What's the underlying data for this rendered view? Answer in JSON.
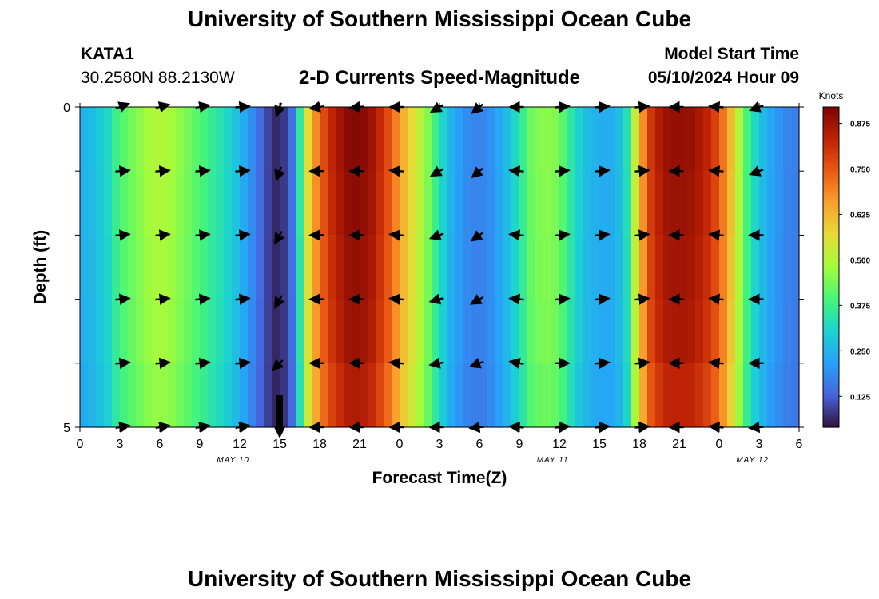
{
  "header": {
    "title": "University of Southern Mississippi Ocean Cube",
    "station_id": "KATA1",
    "coordinates": "30.2580N  88.2130W",
    "subtitle": "2-D Currents Speed-Magnitude",
    "model_start_label": "Model Start Time",
    "model_start_value": "05/10/2024 Hour 09"
  },
  "footer": {
    "title": "University of Southern Mississippi Ocean Cube"
  },
  "colors": {
    "low": "#30123b",
    "mid": "#a3fd3d",
    "high": "#7a0403"
  },
  "chart_data": {
    "type": "heatmap",
    "title": "2-D Currents Speed-Magnitude",
    "xlabel": "Forecast Time(Z)",
    "ylabel": "Depth (ft)",
    "x_hours": [
      0,
      54
    ],
    "x_ticks": [
      "0",
      "3",
      "6",
      "9",
      "12",
      "15",
      "18",
      "21",
      "0",
      "3",
      "6",
      "9",
      "12",
      "15",
      "18",
      "21",
      "0",
      "3",
      "6"
    ],
    "date_labels": [
      {
        "text": "MAY 10",
        "hour": 11.5
      },
      {
        "text": "MAY 11",
        "hour": 35.5
      },
      {
        "text": "MAY 12",
        "hour": 50.5
      }
    ],
    "y_ticks": [
      "0",
      "5"
    ],
    "ylim": [
      0,
      5
    ],
    "colorbar": {
      "label": "Knots",
      "range": [
        0.04,
        0.92
      ],
      "ticks": [
        "0.875",
        "0.750",
        "0.625",
        "0.500",
        "0.375",
        "0.250",
        "0.125"
      ]
    },
    "speed_profile": [
      [
        0,
        0.24
      ],
      [
        1,
        0.27
      ],
      [
        2,
        0.31
      ],
      [
        3,
        0.4
      ],
      [
        4,
        0.44
      ],
      [
        5,
        0.48
      ],
      [
        6,
        0.5
      ],
      [
        7,
        0.48
      ],
      [
        8,
        0.44
      ],
      [
        9,
        0.4
      ],
      [
        10,
        0.36
      ],
      [
        11,
        0.32
      ],
      [
        12,
        0.26
      ],
      [
        13,
        0.18
      ],
      [
        14,
        0.1
      ],
      [
        15,
        0.05
      ],
      [
        16,
        0.16
      ],
      [
        17,
        0.55
      ],
      [
        18,
        0.74
      ],
      [
        19,
        0.84
      ],
      [
        20,
        0.9
      ],
      [
        21,
        0.91
      ],
      [
        22,
        0.87
      ],
      [
        23,
        0.78
      ],
      [
        24,
        0.66
      ],
      [
        25,
        0.56
      ],
      [
        26,
        0.46
      ],
      [
        27,
        0.34
      ],
      [
        28,
        0.24
      ],
      [
        29,
        0.19
      ],
      [
        30,
        0.17
      ],
      [
        31,
        0.2
      ],
      [
        32,
        0.26
      ],
      [
        33,
        0.34
      ],
      [
        34,
        0.44
      ],
      [
        35,
        0.46
      ],
      [
        36,
        0.44
      ],
      [
        37,
        0.34
      ],
      [
        38,
        0.27
      ],
      [
        39,
        0.24
      ],
      [
        40,
        0.24
      ],
      [
        41,
        0.3
      ],
      [
        42,
        0.62
      ],
      [
        43,
        0.82
      ],
      [
        44,
        0.88
      ],
      [
        45,
        0.89
      ],
      [
        46,
        0.88
      ],
      [
        47,
        0.84
      ],
      [
        48,
        0.76
      ],
      [
        49,
        0.6
      ],
      [
        50,
        0.4
      ],
      [
        51,
        0.28
      ],
      [
        52,
        0.22
      ],
      [
        53,
        0.18
      ],
      [
        54,
        0.16
      ]
    ],
    "depth_factor": [
      [
        0.0,
        1.03
      ],
      [
        0.5,
        1.0
      ],
      [
        1.5,
        0.99
      ],
      [
        2.5,
        0.98
      ],
      [
        3.5,
        0.97
      ],
      [
        4.5,
        0.94
      ],
      [
        5.0,
        0.92
      ]
    ],
    "vectors": [
      {
        "hour": 3,
        "depths": [
          0,
          1,
          2,
          3,
          4,
          5
        ],
        "direction": [
          70,
          85,
          85,
          85,
          85,
          80
        ]
      },
      {
        "hour": 6,
        "depths": [
          0,
          1,
          2,
          3,
          4,
          5
        ],
        "direction": [
          75,
          85,
          85,
          85,
          85,
          80
        ]
      },
      {
        "hour": 9,
        "depths": [
          0,
          1,
          2,
          3,
          4,
          5
        ],
        "direction": [
          80,
          85,
          85,
          85,
          85,
          80
        ]
      },
      {
        "hour": 12,
        "depths": [
          0,
          1,
          2,
          3,
          4,
          5
        ],
        "direction": [
          85,
          85,
          85,
          85,
          85,
          80
        ]
      },
      {
        "hour": 15,
        "depths": [
          0,
          1,
          2,
          3,
          4,
          5
        ],
        "direction": [
          200,
          200,
          210,
          210,
          225,
          180
        ]
      },
      {
        "hour": 18,
        "depths": [
          0,
          1,
          2,
          3,
          4,
          5
        ],
        "direction": [
          260,
          270,
          270,
          270,
          270,
          270
        ]
      },
      {
        "hour": 21,
        "depths": [
          0,
          1,
          2,
          3,
          4,
          5
        ],
        "direction": [
          265,
          270,
          270,
          270,
          270,
          270
        ]
      },
      {
        "hour": 24,
        "depths": [
          0,
          1,
          2,
          3,
          4,
          5
        ],
        "direction": [
          270,
          275,
          275,
          275,
          275,
          270
        ]
      },
      {
        "hour": 27,
        "depths": [
          0,
          1,
          2,
          3,
          4,
          5
        ],
        "direction": [
          240,
          240,
          250,
          255,
          260,
          270
        ]
      },
      {
        "hour": 30,
        "depths": [
          0,
          1,
          2,
          3,
          4,
          5
        ],
        "direction": [
          230,
          230,
          235,
          240,
          250,
          265
        ]
      },
      {
        "hour": 33,
        "depths": [
          0,
          1,
          2,
          3,
          4,
          5
        ],
        "direction": [
          270,
          275,
          275,
          275,
          280,
          275
        ]
      },
      {
        "hour": 36,
        "depths": [
          0,
          1,
          2,
          3,
          4,
          5
        ],
        "direction": [
          85,
          85,
          85,
          85,
          90,
          85
        ]
      },
      {
        "hour": 39,
        "depths": [
          0,
          1,
          2,
          3,
          4,
          5
        ],
        "direction": [
          85,
          85,
          85,
          85,
          85,
          85
        ]
      },
      {
        "hour": 42,
        "depths": [
          0,
          1,
          2,
          3,
          4,
          5
        ],
        "direction": [
          85,
          85,
          85,
          85,
          85,
          85
        ]
      },
      {
        "hour": 45,
        "depths": [
          0,
          1,
          2,
          3,
          4,
          5
        ],
        "direction": [
          270,
          270,
          270,
          270,
          270,
          270
        ]
      },
      {
        "hour": 48,
        "depths": [
          0,
          1,
          2,
          3,
          4,
          5
        ],
        "direction": [
          275,
          275,
          275,
          275,
          275,
          275
        ]
      },
      {
        "hour": 51,
        "depths": [
          0,
          1,
          2,
          3,
          4,
          5
        ],
        "direction": [
          250,
          250,
          270,
          270,
          270,
          265
        ]
      }
    ],
    "black_bar_hour": 15
  }
}
